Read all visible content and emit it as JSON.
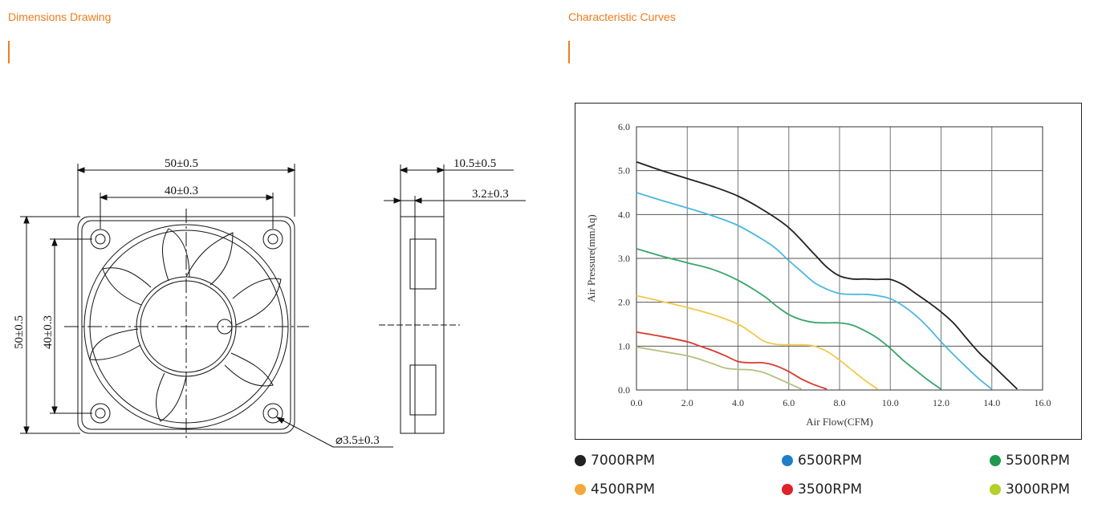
{
  "sections": {
    "left_title": "Dimensions Drawing",
    "right_title": "Characteristic Curves"
  },
  "drawing": {
    "dim_width_outer": "50±0.5",
    "dim_width_hole": "40±0.3",
    "dim_height_outer": "50±0.5",
    "dim_height_hole": "40±0.3",
    "dim_depth": "10.5±0.5",
    "dim_rib": "3.2±0.3",
    "dim_hole_dia": "⌀3.5±0.3"
  },
  "colors": {
    "accent": "#f07c1d",
    "s7000": "#222222",
    "s6500": "#4ab8dd",
    "s5500": "#38a56a",
    "s4500": "#f2c84a",
    "s3500": "#d83a2e",
    "s3000": "#b3c07e"
  },
  "chart_data": {
    "type": "line",
    "title": "",
    "xlabel": "Air Flow(CFM)",
    "ylabel": "Air Pressure(mmAq)",
    "xlim": [
      0,
      16
    ],
    "ylim": [
      0,
      6
    ],
    "x_ticks": [
      "0.0",
      "2.0",
      "4.0",
      "6.0",
      "8.0",
      "10.0",
      "12.0",
      "14.0",
      "16.0"
    ],
    "y_ticks": [
      "0.0",
      "1.0",
      "2.0",
      "3.0",
      "4.0",
      "5.0",
      "6.0"
    ],
    "grid": true,
    "legend_position": "bottom",
    "series": [
      {
        "name": "7000RPM",
        "color": "#222222",
        "x": [
          0,
          1,
          2,
          3,
          4,
          5,
          6,
          7,
          7.5,
          8,
          8.5,
          9,
          9.5,
          10,
          10.5,
          11,
          11.5,
          12,
          12.5,
          13,
          13.5,
          14,
          14.5,
          15
        ],
        "y": [
          5.2,
          5.0,
          4.82,
          4.64,
          4.42,
          4.1,
          3.7,
          3.1,
          2.8,
          2.6,
          2.53,
          2.53,
          2.52,
          2.52,
          2.4,
          2.2,
          2.0,
          1.78,
          1.52,
          1.18,
          0.85,
          0.58,
          0.3,
          0.02
        ]
      },
      {
        "name": "6500RPM",
        "color": "#4ab8dd",
        "x": [
          0,
          1,
          2,
          3,
          4,
          5,
          5.5,
          6,
          6.5,
          7,
          7.5,
          8,
          8.5,
          9,
          9.5,
          10,
          10.5,
          11,
          11.5,
          12,
          12.5,
          13,
          13.5,
          14
        ],
        "y": [
          4.5,
          4.32,
          4.15,
          3.97,
          3.75,
          3.42,
          3.22,
          2.95,
          2.7,
          2.45,
          2.3,
          2.2,
          2.18,
          2.18,
          2.15,
          2.08,
          1.92,
          1.7,
          1.42,
          1.1,
          0.8,
          0.52,
          0.25,
          0.02
        ]
      },
      {
        "name": "5500RPM",
        "color": "#38a56a",
        "x": [
          0,
          1,
          2,
          3,
          4,
          5,
          5.5,
          6,
          6.5,
          7,
          7.5,
          8,
          8.5,
          9,
          9.5,
          10,
          10.5,
          11,
          11.5,
          12
        ],
        "y": [
          3.22,
          3.05,
          2.9,
          2.75,
          2.5,
          2.15,
          1.92,
          1.72,
          1.6,
          1.54,
          1.53,
          1.53,
          1.48,
          1.35,
          1.18,
          0.95,
          0.68,
          0.45,
          0.22,
          0.02
        ]
      },
      {
        "name": "4500RPM",
        "color": "#f2c84a",
        "x": [
          0,
          1,
          2,
          3,
          4,
          4.5,
          5,
          5.5,
          6,
          6.5,
          7,
          7.5,
          8,
          8.5,
          9,
          9.5
        ],
        "y": [
          2.15,
          2.02,
          1.88,
          1.72,
          1.5,
          1.32,
          1.12,
          1.04,
          1.03,
          1.03,
          1.0,
          0.88,
          0.68,
          0.45,
          0.22,
          0.02
        ]
      },
      {
        "name": "3500RPM",
        "color": "#d83a2e",
        "x": [
          0,
          1,
          2,
          2.5,
          3,
          3.5,
          4,
          4.5,
          5,
          5.5,
          6,
          6.5,
          7,
          7.5
        ],
        "y": [
          1.32,
          1.22,
          1.1,
          1.0,
          0.9,
          0.78,
          0.65,
          0.62,
          0.62,
          0.55,
          0.42,
          0.25,
          0.12,
          0.02
        ]
      },
      {
        "name": "3000RPM",
        "color": "#b3c07e",
        "x": [
          0,
          1,
          2,
          2.5,
          3,
          3.5,
          4,
          4.5,
          5,
          5.5,
          6,
          6.5
        ],
        "y": [
          0.98,
          0.88,
          0.78,
          0.7,
          0.6,
          0.5,
          0.47,
          0.46,
          0.4,
          0.28,
          0.15,
          0.02
        ]
      }
    ]
  },
  "legend": [
    {
      "label": "7000RPM",
      "color": "#222222"
    },
    {
      "label": "6500RPM",
      "color": "#1e7fc8"
    },
    {
      "label": "5500RPM",
      "color": "#1f9a4e"
    },
    {
      "label": "4500RPM",
      "color": "#f2a93b"
    },
    {
      "label": "3500RPM",
      "color": "#e0202a"
    },
    {
      "label": "3000RPM",
      "color": "#b6cf2a"
    }
  ]
}
